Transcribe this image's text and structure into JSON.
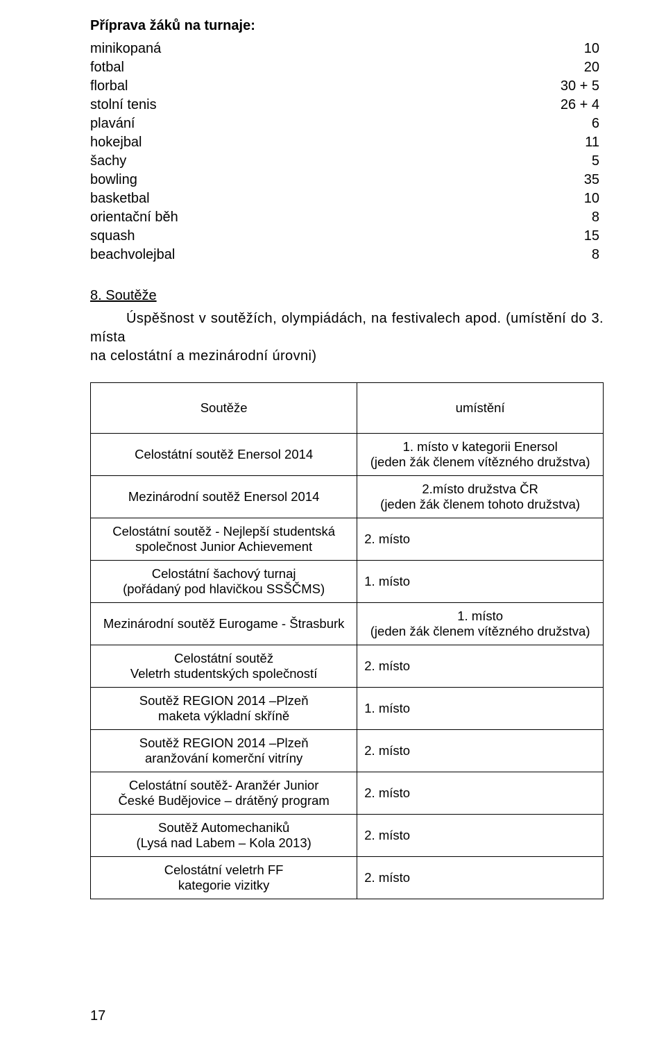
{
  "prep": {
    "title": "Příprava žáků na turnaje:",
    "rows": [
      {
        "label": "minikopaná",
        "value": "10"
      },
      {
        "label": "fotbal",
        "value": "20"
      },
      {
        "label": "florbal",
        "value": "30 + 5"
      },
      {
        "label": "stolní tenis",
        "value": "26 + 4"
      },
      {
        "label": "plavání",
        "value": "6"
      },
      {
        "label": "hokejbal",
        "value": "11"
      },
      {
        "label": "šachy",
        "value": "5"
      },
      {
        "label": "bowling",
        "value": "35"
      },
      {
        "label": "basketbal",
        "value": "10"
      },
      {
        "label": "orientační běh",
        "value": "8"
      },
      {
        "label": "squash",
        "value": "15"
      },
      {
        "label": "beachvolejbal",
        "value": "8"
      }
    ]
  },
  "sub8": {
    "label": "8. Soutěže",
    "body_line1": "Úspěšnost v soutěžích, olympiádách, na festivalech apod. (umístění do 3. místa",
    "body_line2": "na celostátní a mezinárodní úrovni)"
  },
  "table": {
    "header_left": "Soutěže",
    "header_right": "umístění",
    "rows": [
      {
        "left": "Celostátní soutěž Enersol 2014",
        "right": "1. místo v kategorii Enersol\n(jeden žák členem vítězného družstva)"
      },
      {
        "left": "Mezinárodní soutěž Enersol 2014",
        "right": "2.místo družstva ČR\n(jeden žák členem tohoto družstva)"
      },
      {
        "left": "Celostátní soutěž - Nejlepší studentská\nspolečnost Junior Achievement",
        "right": "2. místo"
      },
      {
        "left": "Celostátní šachový turnaj\n(pořádaný pod hlavičkou SSŠČMS)",
        "right": "1. místo"
      },
      {
        "left": "Mezinárodní soutěž Eurogame - Štrasburk",
        "right": "1. místo\n(jeden žák členem vítězného družstva)"
      },
      {
        "left": "Celostátní soutěž\nVeletrh studentských společností",
        "right": "2. místo"
      },
      {
        "left": "Soutěž REGION 2014 –Plzeň\nmaketa výkladní skříně",
        "right": "1. místo"
      },
      {
        "left": "Soutěž REGION 2014 –Plzeň\naranžování komerční vitríny",
        "right": "2. místo"
      },
      {
        "left": "Celostátní soutěž- Aranžér Junior\nČeské Budějovice – drátěný program",
        "right": "2. místo"
      },
      {
        "left": "Soutěž Automechaniků\n(Lysá nad Labem – Kola 2013)",
        "right": "2. místo"
      },
      {
        "left": "Celostátní veletrh FF\nkategorie vizitky",
        "right": "2. místo"
      }
    ],
    "right_alignment": [
      "center",
      "center",
      "left",
      "left",
      "center",
      "left",
      "left",
      "left",
      "left",
      "left",
      "left"
    ]
  },
  "page_number": "17"
}
